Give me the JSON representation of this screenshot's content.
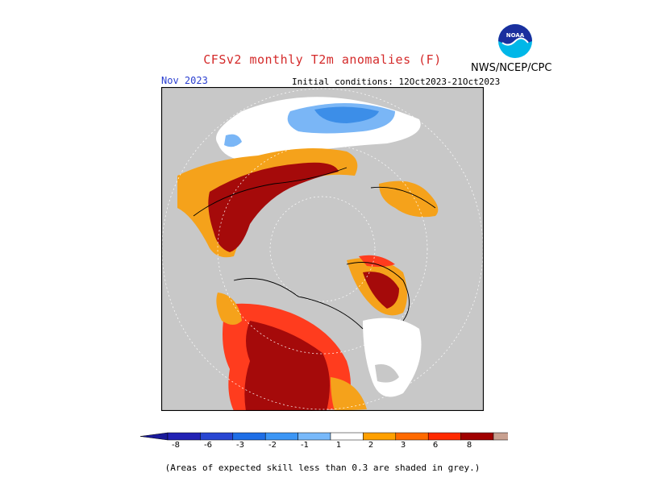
{
  "title": "CFSv2 monthly T2m anomalies (F)",
  "agency": "NWS/NCEP/CPC",
  "logo_text": "NOAA",
  "valid_month": "Nov 2023",
  "initial_conditions": "Initial conditions: 12Oct2023-21Oct2023",
  "footnote": "(Areas of expected skill less than 0.3 are shaded in grey.)",
  "colors": {
    "low_skill": "#c8c8c8",
    "neg_strong": "#1f1fb0",
    "orange": "#f5a21b",
    "red": "#ff3c1e",
    "dark_red": "#a50a0a"
  },
  "colorbar": {
    "segments": [
      {
        "color": "#2222b4"
      },
      {
        "color": "#2846d2"
      },
      {
        "color": "#1e6ee6"
      },
      {
        "color": "#3c96f5"
      },
      {
        "color": "#78b9fa"
      },
      {
        "color": "#ffffff"
      },
      {
        "color": "#ffa000"
      },
      {
        "color": "#ff6a00"
      },
      {
        "color": "#ff2a00"
      },
      {
        "color": "#a00000"
      },
      {
        "color": "#c8a090"
      }
    ],
    "low_end_color": "#1a1a9a",
    "high_end_color": "#8c5a4a",
    "labels": [
      "-8",
      "-6",
      "-3",
      "-2",
      "-1",
      "1",
      "2",
      "3",
      "6",
      "8"
    ]
  }
}
